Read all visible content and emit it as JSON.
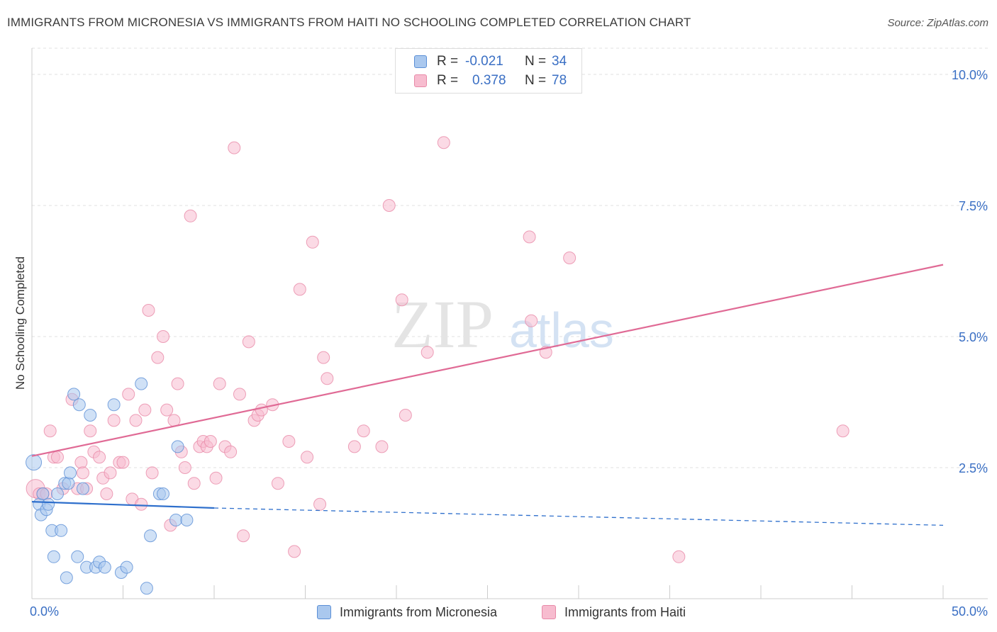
{
  "title": "IMMIGRANTS FROM MICRONESIA VS IMMIGRANTS FROM HAITI NO SCHOOLING COMPLETED CORRELATION CHART",
  "source": "Source: ZipAtlas.com",
  "watermark": {
    "zip": "ZIP",
    "atlas": "atlas"
  },
  "colors": {
    "micronesia_fill": "#aac8ee",
    "micronesia_stroke": "#5b8fd6",
    "micronesia_line": "#2e6fcc",
    "haiti_fill": "#f7bccf",
    "haiti_stroke": "#e88aa8",
    "haiti_line": "#e06a95",
    "tick_label": "#3a6fc4",
    "grid": "#e2e2e2"
  },
  "legend": {
    "rows": [
      {
        "r_label": "R =",
        "r_value": "-0.021",
        "n_label": "N =",
        "n_value": "34"
      },
      {
        "r_label": "R =",
        "r_value": "0.378",
        "n_label": "N =",
        "n_value": "78"
      }
    ]
  },
  "bottom_legend": {
    "micronesia": "Immigrants from Micronesia",
    "haiti": "Immigrants from Haiti"
  },
  "chart_data": {
    "type": "scatter",
    "title": "IMMIGRANTS FROM MICRONESIA VS IMMIGRANTS FROM HAITI NO SCHOOLING COMPLETED CORRELATION CHART",
    "xlabel": "",
    "ylabel": "No Schooling Completed",
    "xlim": [
      0,
      50
    ],
    "ylim": [
      0,
      10.5
    ],
    "x_tick_labels": [
      "0.0%",
      "50.0%"
    ],
    "y_ticks": [
      2.5,
      5.0,
      7.5,
      10.0
    ],
    "y_tick_labels": [
      "2.5%",
      "5.0%",
      "7.5%",
      "10.0%"
    ],
    "grid": "horizontal dashed",
    "series": [
      {
        "name": "Immigrants from Micronesia",
        "points": [
          [
            0.1,
            2.6
          ],
          [
            0.4,
            1.8
          ],
          [
            0.5,
            1.6
          ],
          [
            0.6,
            2.0
          ],
          [
            0.8,
            1.7
          ],
          [
            0.9,
            1.8
          ],
          [
            1.1,
            1.3
          ],
          [
            1.2,
            0.8
          ],
          [
            1.4,
            2.0
          ],
          [
            1.6,
            1.3
          ],
          [
            1.8,
            2.2
          ],
          [
            1.9,
            0.4
          ],
          [
            2.0,
            2.2
          ],
          [
            2.1,
            2.4
          ],
          [
            2.3,
            3.9
          ],
          [
            2.5,
            0.8
          ],
          [
            2.6,
            3.7
          ],
          [
            2.8,
            2.1
          ],
          [
            3.0,
            0.6
          ],
          [
            3.2,
            3.5
          ],
          [
            3.5,
            0.6
          ],
          [
            3.7,
            0.7
          ],
          [
            4.0,
            0.6
          ],
          [
            4.5,
            3.7
          ],
          [
            4.9,
            0.5
          ],
          [
            5.2,
            0.6
          ],
          [
            6.0,
            4.1
          ],
          [
            6.3,
            0.2
          ],
          [
            6.5,
            1.2
          ],
          [
            7.0,
            2.0
          ],
          [
            7.2,
            2.0
          ],
          [
            7.9,
            1.5
          ],
          [
            8.0,
            2.9
          ],
          [
            8.5,
            1.5
          ]
        ],
        "trend": {
          "x": [
            0,
            10,
            50
          ],
          "y": [
            1.85,
            1.73,
            1.4
          ]
        }
      },
      {
        "name": "Immigrants from Haiti",
        "points": [
          [
            0.2,
            2.1
          ],
          [
            0.4,
            2.0
          ],
          [
            0.6,
            2.0
          ],
          [
            0.8,
            2.0
          ],
          [
            1.0,
            3.2
          ],
          [
            1.2,
            2.7
          ],
          [
            1.4,
            2.7
          ],
          [
            1.7,
            2.1
          ],
          [
            2.2,
            3.8
          ],
          [
            2.5,
            2.1
          ],
          [
            2.7,
            2.6
          ],
          [
            2.8,
            2.4
          ],
          [
            3.0,
            2.1
          ],
          [
            3.2,
            3.2
          ],
          [
            3.4,
            2.8
          ],
          [
            3.7,
            2.7
          ],
          [
            3.9,
            2.3
          ],
          [
            4.1,
            2.0
          ],
          [
            4.3,
            2.4
          ],
          [
            4.5,
            3.4
          ],
          [
            4.8,
            2.6
          ],
          [
            5.0,
            2.6
          ],
          [
            5.3,
            3.9
          ],
          [
            5.5,
            1.9
          ],
          [
            5.7,
            3.4
          ],
          [
            6.0,
            1.8
          ],
          [
            6.2,
            3.6
          ],
          [
            6.4,
            5.5
          ],
          [
            6.6,
            2.4
          ],
          [
            6.9,
            4.6
          ],
          [
            7.2,
            5.0
          ],
          [
            7.4,
            3.6
          ],
          [
            7.6,
            1.4
          ],
          [
            7.8,
            3.4
          ],
          [
            8.0,
            4.1
          ],
          [
            8.2,
            2.8
          ],
          [
            8.4,
            2.5
          ],
          [
            8.7,
            7.3
          ],
          [
            8.9,
            2.2
          ],
          [
            9.2,
            2.9
          ],
          [
            9.4,
            3.0
          ],
          [
            9.6,
            2.9
          ],
          [
            9.8,
            3.0
          ],
          [
            10.1,
            2.3
          ],
          [
            10.3,
            4.1
          ],
          [
            10.6,
            2.9
          ],
          [
            10.9,
            2.8
          ],
          [
            11.1,
            8.6
          ],
          [
            11.4,
            3.9
          ],
          [
            11.6,
            1.2
          ],
          [
            11.9,
            4.9
          ],
          [
            12.2,
            3.4
          ],
          [
            12.4,
            3.5
          ],
          [
            12.6,
            3.6
          ],
          [
            13.2,
            3.7
          ],
          [
            13.5,
            2.2
          ],
          [
            14.1,
            3.0
          ],
          [
            14.4,
            0.9
          ],
          [
            14.7,
            5.9
          ],
          [
            15.1,
            2.7
          ],
          [
            15.4,
            6.8
          ],
          [
            15.8,
            1.8
          ],
          [
            16.0,
            4.6
          ],
          [
            16.2,
            4.2
          ],
          [
            17.7,
            2.9
          ],
          [
            18.2,
            3.2
          ],
          [
            19.2,
            2.9
          ],
          [
            19.6,
            7.5
          ],
          [
            20.3,
            5.7
          ],
          [
            20.5,
            3.5
          ],
          [
            21.7,
            4.7
          ],
          [
            22.6,
            8.7
          ],
          [
            27.3,
            6.9
          ],
          [
            27.4,
            5.3
          ],
          [
            28.2,
            4.7
          ],
          [
            29.5,
            6.5
          ],
          [
            35.5,
            0.8
          ],
          [
            44.5,
            3.2
          ]
        ],
        "trend": {
          "x": [
            0,
            50
          ],
          "y": [
            2.72,
            6.37
          ]
        }
      }
    ]
  }
}
